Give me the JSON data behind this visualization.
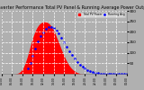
{
  "title": "Solar PV/Inverter Performance Total PV Panel & Running Average Power Output",
  "bg_color": "#b0b0b0",
  "plot_bg_color": "#b0b0b0",
  "bar_color": "#ff0000",
  "avg_color": "#0000ff",
  "grid_color": "#ffffff",
  "ylim": [
    0,
    300
  ],
  "yticks": [
    50,
    100,
    150,
    200,
    250,
    300
  ],
  "title_fontsize": 3.5,
  "tick_fontsize": 3.0,
  "legend_items": [
    "Total PV Power",
    "Running Avg"
  ],
  "legend_colors": [
    "#ff0000",
    "#0000ff"
  ],
  "xtick_positions": [
    0,
    8,
    16,
    24,
    32,
    40,
    48,
    56,
    64,
    72,
    80,
    88,
    96
  ],
  "xtick_labels": [
    "04:00",
    "06:00",
    "08:00",
    "10:00",
    "12:00",
    "14:00",
    "16:00",
    "18:00",
    "20:00",
    "22:00",
    "00:00",
    "02:00",
    "04:00"
  ],
  "pv_values": [
    0,
    0,
    0,
    0,
    0,
    0,
    0,
    0,
    0,
    0,
    0,
    1,
    2,
    4,
    8,
    14,
    22,
    33,
    48,
    65,
    85,
    107,
    130,
    152,
    172,
    190,
    205,
    218,
    228,
    236,
    241,
    245,
    247,
    248,
    247,
    245,
    241,
    236,
    228,
    218,
    207,
    193,
    178,
    163,
    147,
    131,
    115,
    100,
    86,
    72,
    60,
    49,
    39,
    31,
    24,
    18,
    13,
    9,
    6,
    4,
    2,
    1,
    1,
    0,
    0,
    0,
    0,
    0,
    0,
    0,
    0,
    0,
    0,
    0,
    0,
    0,
    0,
    0,
    0,
    0,
    0,
    0,
    0,
    0,
    0,
    0,
    0,
    0,
    0,
    0,
    0,
    0,
    0,
    0,
    0,
    0,
    0
  ],
  "avg_values": [
    null,
    null,
    null,
    null,
    null,
    null,
    null,
    null,
    null,
    null,
    null,
    null,
    null,
    null,
    null,
    null,
    null,
    null,
    null,
    null,
    25,
    38,
    52,
    68,
    85,
    103,
    120,
    137,
    153,
    167,
    179,
    190,
    199,
    207,
    213,
    218,
    221,
    223,
    223,
    221,
    218,
    213,
    207,
    200,
    192,
    183,
    173,
    163,
    152,
    141,
    130,
    119,
    109,
    99,
    89,
    80,
    71,
    63,
    56,
    49,
    43,
    38,
    33,
    28,
    24,
    21,
    18,
    15,
    13,
    11,
    9,
    7,
    6,
    5,
    4,
    3,
    2,
    2,
    1,
    1,
    0,
    0,
    0,
    0,
    0,
    0,
    0,
    0,
    0,
    0,
    0,
    0,
    0,
    0,
    0,
    0,
    0
  ],
  "num_x": 97
}
